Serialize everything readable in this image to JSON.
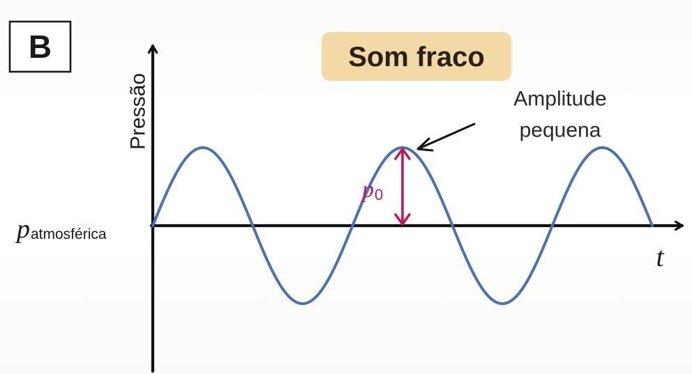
{
  "panel_label": "B",
  "title": "Som fraco",
  "annotation": {
    "line1": "Amplitude",
    "line2": "pequena"
  },
  "colors": {
    "wave": "#4a72b0",
    "amplitude_marker": "#c2185b",
    "title_badge": "#f2d9a6",
    "axis": "#111111"
  },
  "chart_data": {
    "type": "line",
    "ylabel": "Pressão",
    "baseline_label": {
      "main": "p",
      "subscript": "atmosférica"
    },
    "xlabel": "t",
    "amplitude_label": {
      "main": "p",
      "subscript": "0"
    },
    "series": [
      {
        "amplitude": 1,
        "baseline": 0,
        "cycles": 2.5,
        "points": [
          [
            0,
            0
          ],
          [
            0.25,
            1
          ],
          [
            0.5,
            0
          ],
          [
            0.75,
            -1
          ],
          [
            1.0,
            0
          ],
          [
            1.25,
            1
          ],
          [
            1.5,
            0
          ],
          [
            1.75,
            -1
          ],
          [
            2.0,
            0
          ],
          [
            2.25,
            1
          ],
          [
            2.5,
            0
          ]
        ]
      }
    ],
    "grid": false,
    "legend": "none"
  }
}
